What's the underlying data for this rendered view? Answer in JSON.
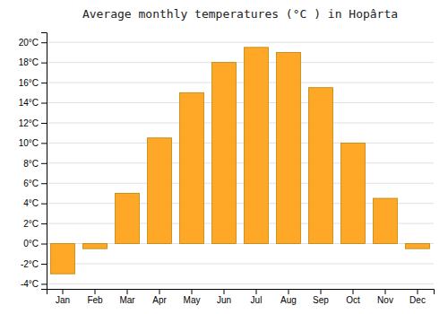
{
  "chart_data": {
    "type": "bar",
    "title": "Average monthly temperatures (°C ) in Hopârta",
    "categories": [
      "Jan",
      "Feb",
      "Mar",
      "Apr",
      "May",
      "Jun",
      "Jul",
      "Aug",
      "Sep",
      "Oct",
      "Nov",
      "Dec"
    ],
    "values": [
      -3.0,
      -0.5,
      5.0,
      10.5,
      15.0,
      18.0,
      19.5,
      19.0,
      15.5,
      10.0,
      4.5,
      -0.5
    ],
    "color": "#FFA726",
    "ylim": [
      -4.5,
      21
    ],
    "yticks": [
      {
        "value": -4,
        "label": "-4°C"
      },
      {
        "value": -2,
        "label": "-2°C"
      },
      {
        "value": 0,
        "label": "0°C"
      },
      {
        "value": 2,
        "label": "2°C"
      },
      {
        "value": 4,
        "label": "4°C"
      },
      {
        "value": 6,
        "label": "6°C"
      },
      {
        "value": 8,
        "label": "8°C"
      },
      {
        "value": 10,
        "label": "10°C"
      },
      {
        "value": 12,
        "label": "12°C"
      },
      {
        "value": 14,
        "label": "14°C"
      },
      {
        "value": 16,
        "label": "16°C"
      },
      {
        "value": 18,
        "label": "18°C"
      },
      {
        "value": 20,
        "label": "20°C"
      }
    ],
    "grid": true
  }
}
